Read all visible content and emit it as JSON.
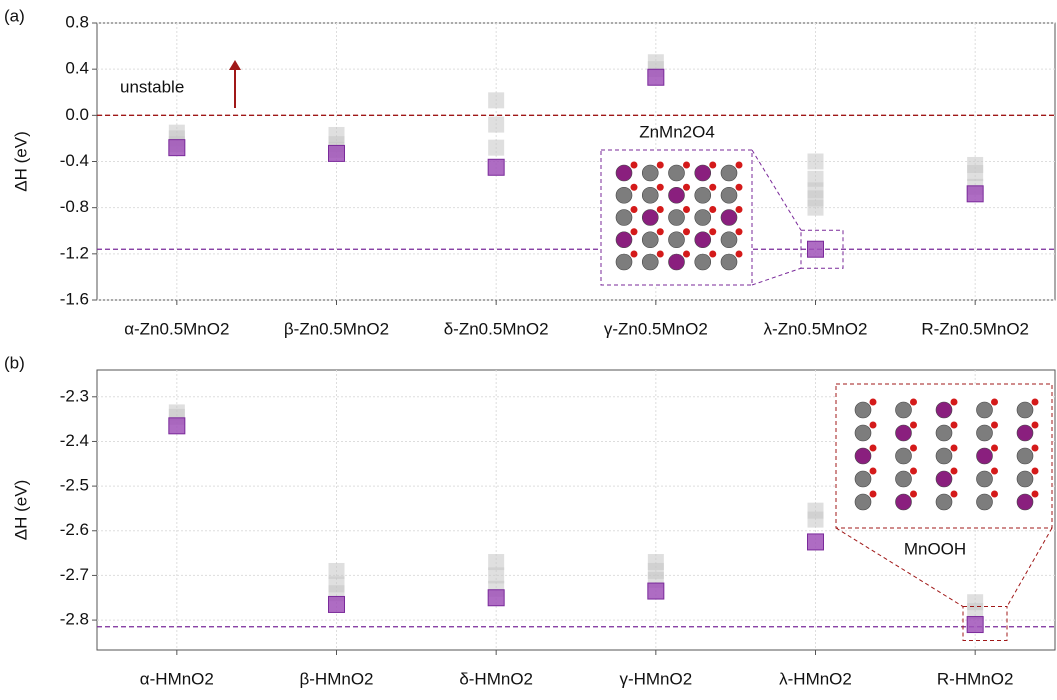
{
  "chart_data": [
    {
      "type": "strip",
      "panel_label": "(a)",
      "ylabel": "ΔH (eV)",
      "categories": [
        "α-Zn0.5MnO2",
        "β-Zn0.5MnO2",
        "δ-Zn0.5MnO2",
        "γ-Zn0.5MnO2",
        "λ-Zn0.5MnO2",
        "R-Zn0.5MnO2"
      ],
      "ylim": [
        -1.6,
        0.8
      ],
      "yticks": [
        -1.6,
        -1.2,
        -0.8,
        -0.4,
        {
          "value": 0,
          "label": "0.0"
        },
        0.4,
        0.8
      ],
      "grid": true,
      "series": [
        {
          "color": "#c4c4c4",
          "values": [
            -0.15,
            -0.17,
            0.13,
            0.46,
            -0.4,
            -0.43
          ]
        },
        {
          "color": "#c4c4c4",
          "values": [
            -0.2,
            -0.25,
            -0.08,
            0.4,
            -0.55,
            -0.5
          ]
        },
        {
          "color": "#c4c4c4",
          "values": [
            -0.25,
            -0.3,
            -0.28,
            null,
            -0.65,
            -0.62
          ]
        },
        {
          "color": "#c4c4c4",
          "values": [
            null,
            null,
            null,
            null,
            -0.72,
            null
          ]
        },
        {
          "color": "#c4c4c4",
          "values": [
            null,
            null,
            null,
            null,
            -0.8,
            null
          ]
        },
        {
          "color": "#a052b8",
          "values": [
            -0.28,
            -0.33,
            -0.45,
            0.33,
            -1.16,
            -0.68
          ]
        }
      ],
      "reference_lines": [
        {
          "value": 0,
          "color": "#a01818"
        },
        {
          "value": -1.16,
          "color": "#7a2a9a"
        }
      ],
      "annotations": [
        "unstable",
        "ZnMn2O4"
      ]
    },
    {
      "type": "strip",
      "panel_label": "(b)",
      "ylabel": "ΔH (eV)",
      "categories": [
        "α-HMnO2",
        "β-HMnO2",
        "δ-HMnO2",
        "γ-HMnO2",
        "λ-HMnO2",
        "R-HMnO2"
      ],
      "ylim": [
        -2.867,
        -2.24
      ],
      "yticks": [
        -2.8,
        -2.7,
        -2.6,
        -2.5,
        -2.4,
        -2.3
      ],
      "grid": true,
      "series": [
        {
          "color": "#c4c4c4",
          "values": [
            -2.335,
            -2.69,
            -2.67,
            -2.67,
            -2.555,
            -2.76
          ]
        },
        {
          "color": "#c4c4c4",
          "values": [
            -2.345,
            -2.72,
            -2.7,
            -2.69,
            -2.575,
            -2.78
          ]
        },
        {
          "color": "#c4c4c4",
          "values": [
            null,
            -2.74,
            -2.73,
            -2.71,
            null,
            null
          ]
        },
        {
          "color": "#a052b8",
          "values": [
            -2.365,
            -2.765,
            -2.75,
            -2.735,
            -2.625,
            -2.81
          ]
        }
      ],
      "reference_lines": [
        {
          "value": -2.815,
          "color": "#7a2a9a"
        }
      ],
      "annotations": [
        "MnOOH"
      ]
    }
  ]
}
